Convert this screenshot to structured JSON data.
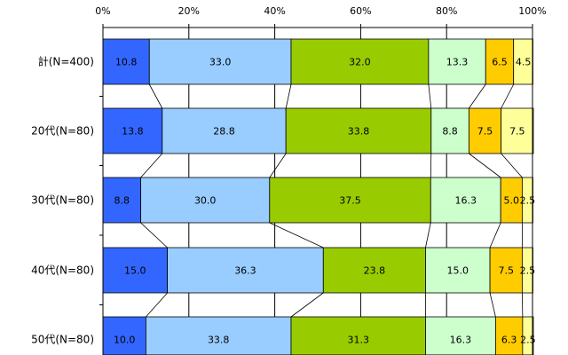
{
  "chart_data": {
    "type": "bar",
    "orientation": "horizontal",
    "stacked": true,
    "percent": true,
    "categories": [
      "計(N=400)",
      "20代(N=80)",
      "30代(N=80)",
      "40代(N=80)",
      "50代(N=80)"
    ],
    "axis_ticks": [
      "0%",
      "20%",
      "40%",
      "60%",
      "80%",
      "100%"
    ],
    "xlim": [
      0,
      100
    ],
    "grid": true,
    "series": [
      {
        "name": "series-1",
        "color": "#3366ff",
        "values": [
          10.8,
          13.8,
          8.8,
          15.0,
          10.0
        ],
        "labels": [
          "10.8",
          "13.8",
          "8.8",
          "15.0",
          "10.0"
        ]
      },
      {
        "name": "series-2",
        "color": "#99ccff",
        "values": [
          33.0,
          28.8,
          30.0,
          36.3,
          33.8
        ],
        "labels": [
          "33.0",
          "28.8",
          "30.0",
          "36.3",
          "33.8"
        ]
      },
      {
        "name": "series-3",
        "color": "#99cc00",
        "values": [
          32.0,
          33.8,
          37.5,
          23.8,
          31.3
        ],
        "labels": [
          "32.0",
          "33.8",
          "37.5",
          "23.8",
          "31.3"
        ]
      },
      {
        "name": "series-4",
        "color": "#ccffcc",
        "values": [
          13.3,
          8.8,
          16.3,
          15.0,
          16.3
        ],
        "labels": [
          "13.3",
          "8.8",
          "16.3",
          "15.0",
          "16.3"
        ]
      },
      {
        "name": "series-5",
        "color": "#ffcc00",
        "values": [
          6.5,
          7.5,
          5.0,
          7.5,
          6.3
        ],
        "labels": [
          "6.5",
          "7.5",
          "5.0",
          "7.5",
          "6.3"
        ]
      },
      {
        "name": "series-6",
        "color": "#ffff99",
        "values": [
          4.5,
          7.5,
          2.5,
          2.5,
          2.5
        ],
        "labels": [
          "4.5",
          "7.5",
          "2.5",
          "2.5",
          "2.5"
        ]
      }
    ]
  }
}
